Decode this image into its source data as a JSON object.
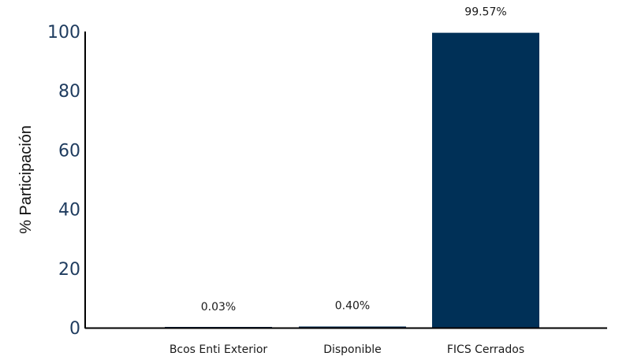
{
  "chart_data": {
    "type": "bar",
    "title": "",
    "xlabel": "",
    "ylabel": "% Participación",
    "categories": [
      "Bcos Enti Exterior",
      "Disponible",
      "FICS Cerrados"
    ],
    "values": [
      0.03,
      0.4,
      99.57
    ],
    "data_labels": [
      "0.03%",
      "0.40%",
      "99.57%"
    ],
    "ylim": [
      0,
      100
    ],
    "yticks": [
      0,
      20,
      40,
      60,
      80,
      100
    ],
    "grid": false,
    "legend": "none",
    "bar_color": "#003057",
    "axis_color": "#000000",
    "ytick_color": "#1f3c5f"
  }
}
